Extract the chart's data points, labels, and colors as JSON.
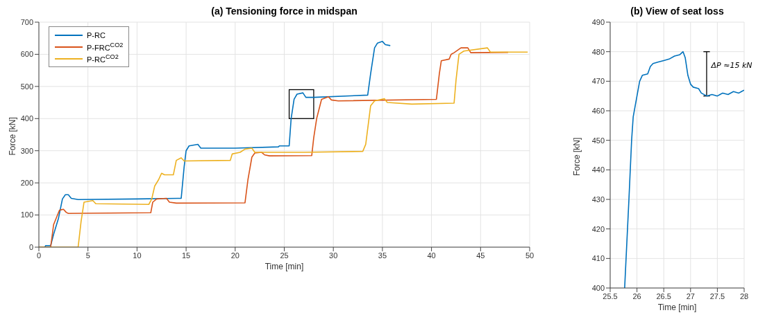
{
  "chart_data": [
    {
      "type": "line",
      "title": "(a) Tensioning force in midspan",
      "xlabel": "Time [min]",
      "ylabel": "Force [kN]",
      "xlim": [
        0,
        50
      ],
      "xticks": [
        0,
        5,
        10,
        15,
        20,
        25,
        30,
        35,
        40,
        45,
        50
      ],
      "ylim": [
        0,
        700
      ],
      "yticks": [
        0,
        100,
        200,
        300,
        400,
        500,
        600,
        700
      ],
      "grid": true,
      "legend": "top left",
      "marker": "none",
      "series": [
        {
          "name": "P-RC",
          "color": "#0072bd",
          "x": [
            0.6,
            0.7,
            1.2,
            1.5,
            2,
            2.4,
            2.7,
            3.0,
            3.3,
            4,
            10,
            14.5,
            14.8,
            15.0,
            15.3,
            16.2,
            16.5,
            20,
            24.4,
            24.5,
            25.5,
            25.7,
            26,
            26.3,
            26.9,
            27.2,
            28,
            33.5,
            33.8,
            34.2,
            34.5,
            35,
            35.3,
            35.8
          ],
          "values": [
            0,
            5,
            5,
            40,
            90,
            150,
            163,
            163,
            152,
            148,
            150,
            152,
            250,
            300,
            315,
            320,
            308,
            308,
            312,
            315,
            315,
            400,
            460,
            476,
            480,
            466,
            466,
            473,
            540,
            620,
            635,
            640,
            630,
            627
          ]
        },
        {
          "name": "P-FRC$^{CO2}$",
          "color": "#d95319",
          "x": [
            0,
            1.2,
            1.5,
            1.9,
            2.1,
            2.5,
            2.8,
            3,
            11.4,
            11.6,
            12,
            13,
            13.3,
            14,
            21,
            21.3,
            21.7,
            22,
            22.7,
            23,
            23.5,
            27.8,
            28,
            28.3,
            28.8,
            29.5,
            29.8,
            30.5,
            40.5,
            40.8,
            41,
            41.8,
            42,
            42.3,
            43,
            43.7,
            44,
            47.8
          ],
          "values": [
            0,
            0,
            70,
            100,
            115,
            118,
            108,
            105,
            107,
            140,
            150,
            152,
            140,
            137,
            138,
            210,
            280,
            293,
            295,
            287,
            284,
            285,
            340,
            400,
            460,
            468,
            458,
            455,
            460,
            540,
            580,
            585,
            600,
            605,
            620,
            620,
            605,
            606
          ]
        },
        {
          "name": "P-RC$^{CO2}$",
          "color": "#edb120",
          "x": [
            0,
            4.0,
            4.3,
            4.6,
            5.5,
            5.8,
            11.2,
            11.5,
            11.8,
            12.2,
            12.5,
            12.8,
            13.7,
            14,
            14.5,
            14.8,
            19.5,
            19.7,
            20.5,
            21,
            21.7,
            22,
            27,
            33,
            33.3,
            33.8,
            34.2,
            35.2,
            35.5,
            38,
            42.3,
            42.5,
            42.8,
            43.3,
            45.7,
            46,
            49.8
          ],
          "values": [
            0,
            0,
            80,
            140,
            145,
            135,
            133,
            150,
            190,
            210,
            230,
            225,
            225,
            270,
            278,
            268,
            270,
            290,
            295,
            305,
            308,
            295,
            295,
            298,
            320,
            440,
            455,
            462,
            450,
            445,
            448,
            520,
            600,
            610,
            620,
            607,
            607
          ]
        }
      ]
    },
    {
      "type": "line",
      "title": "(b) View of seat loss",
      "xlabel": "Time [min]",
      "ylabel": "Force [kN]",
      "xlim": [
        25.5,
        28
      ],
      "xticks": [
        25.5,
        26,
        26.5,
        27,
        27.5,
        28
      ],
      "ylim": [
        400,
        490
      ],
      "yticks": [
        400,
        410,
        420,
        430,
        440,
        450,
        460,
        470,
        480,
        490
      ],
      "grid": true,
      "marker": "none",
      "annotations": [
        "ΔP ≈15 kN"
      ],
      "series": [
        {
          "color": "#0072bd",
          "x": [
            25.77,
            25.85,
            25.9,
            25.93,
            26,
            26.05,
            26.1,
            26.2,
            26.25,
            26.3,
            26.4,
            26.5,
            26.6,
            26.7,
            26.8,
            26.86,
            26.9,
            26.95,
            27.0,
            27.05,
            27.15,
            27.2,
            27.3,
            27.4,
            27.5,
            27.55,
            27.6,
            27.7,
            27.8,
            27.9,
            27.95,
            28
          ],
          "values": [
            400,
            430,
            450,
            458,
            465,
            470,
            472,
            472.5,
            475,
            476,
            476.5,
            477,
            477.5,
            478.5,
            479,
            480,
            478,
            472,
            469,
            468,
            467.5,
            466,
            465,
            465.5,
            465,
            465.5,
            466,
            465.5,
            466.5,
            466,
            466.5,
            467
          ]
        }
      ]
    }
  ]
}
